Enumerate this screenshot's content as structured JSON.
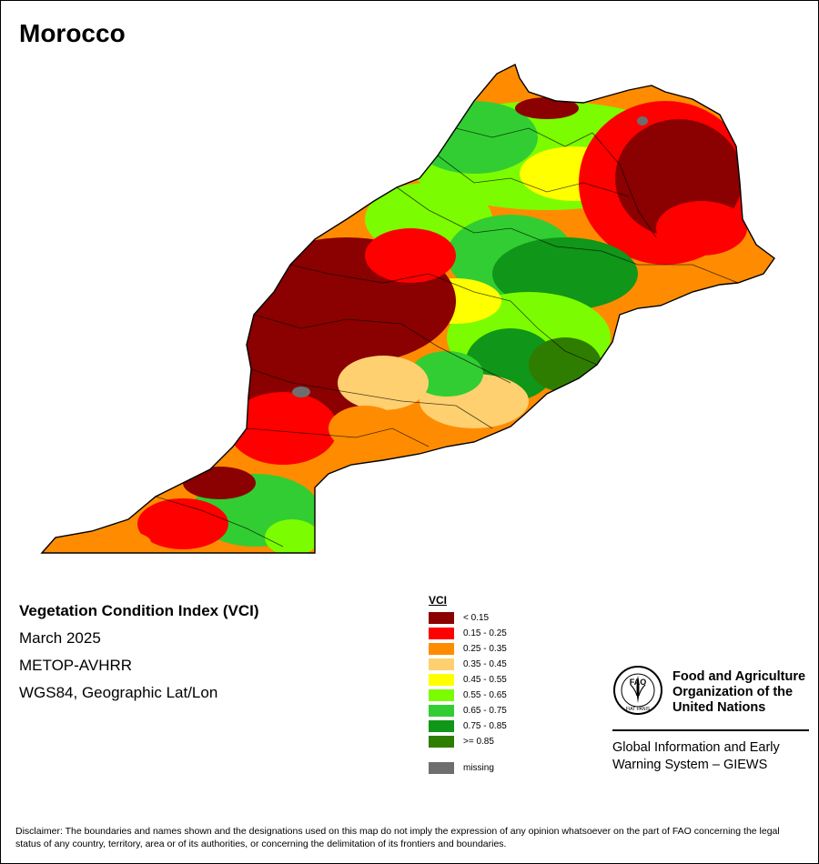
{
  "map": {
    "title": "Morocco",
    "info": {
      "heading": "Vegetation Condition Index (VCI)",
      "date": "March 2025",
      "sensor": "METOP-AVHRR",
      "projection": "WGS84, Geographic Lat/Lon"
    },
    "legend": {
      "title": "VCI",
      "classes": [
        {
          "label": "< 0.15",
          "color": "#8b0000"
        },
        {
          "label": "0.15 - 0.25",
          "color": "#ff0000"
        },
        {
          "label": "0.25 - 0.35",
          "color": "#ff8c00"
        },
        {
          "label": "0.35 - 0.45",
          "color": "#ffd070"
        },
        {
          "label": "0.45 - 0.55",
          "color": "#ffff00"
        },
        {
          "label": "0.55 - 0.65",
          "color": "#7cfc00"
        },
        {
          "label": "0.65 - 0.75",
          "color": "#32cd32"
        },
        {
          "label": "0.75 - 0.85",
          "color": "#109618"
        },
        {
          "label": ">= 0.85",
          "color": "#2e7d00"
        }
      ],
      "missing": {
        "label": "missing",
        "color": "#6e6e6e"
      }
    },
    "org": {
      "name": "Food and Agriculture Organization of the United Nations",
      "logo_text": "FAO",
      "logo_motto": "FIAT PANIS",
      "system": "Global Information and Early Warning System – GIEWS"
    },
    "disclaimer": "Disclaimer: The boundaries and names shown and the designations used on this map do not imply the expression of any opinion whatsoever on the part of FAO concerning the legal status of any country, territory, area or of its authorities, or concerning the delimitation of its frontiers and boundaries."
  }
}
